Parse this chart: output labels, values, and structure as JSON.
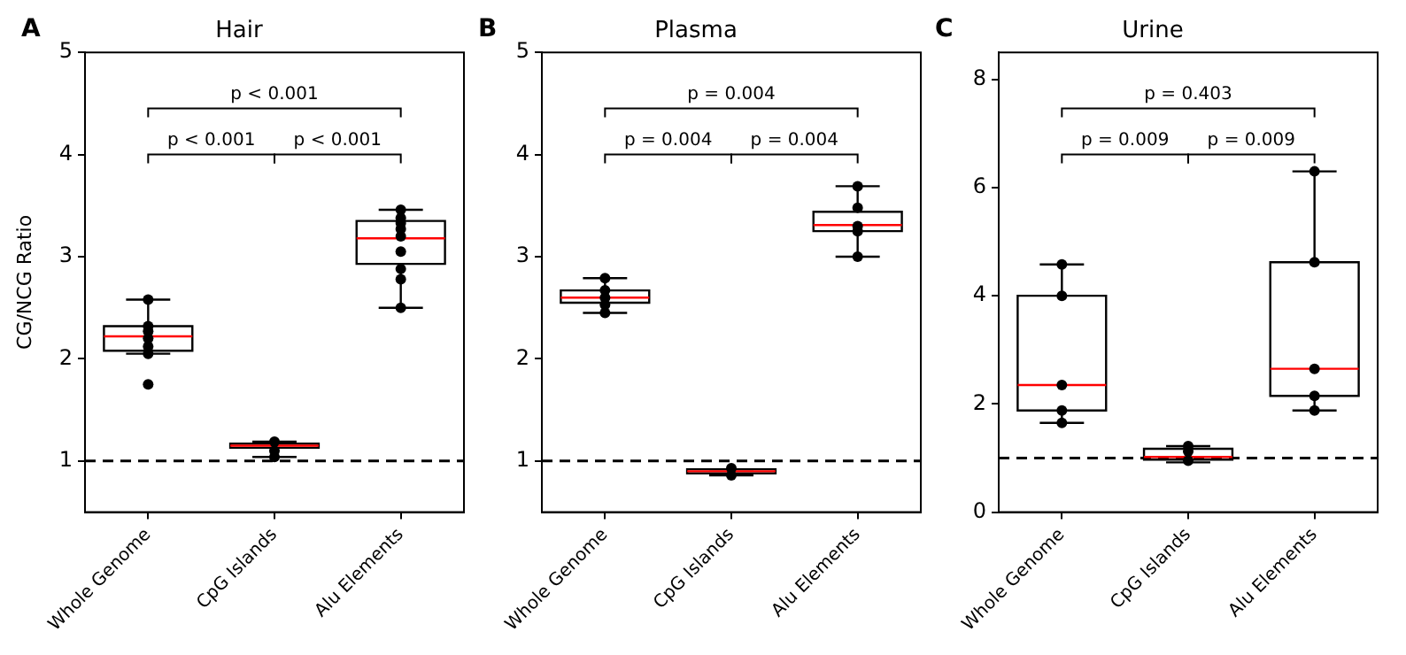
{
  "chart_data": [
    {
      "type": "box",
      "title": "Hair",
      "ylabel": "CG/NCG Ratio",
      "categories": [
        "Whole Genome",
        "CpG Islands",
        "Alu Elements"
      ],
      "ylim": [
        0.5,
        5
      ],
      "yticks": [
        1,
        2,
        3,
        4,
        5
      ],
      "grid": false,
      "legend": false,
      "ref_lines": [
        {
          "axis": "y",
          "value": 1,
          "color": "#000000",
          "line_style": "dashed"
        }
      ],
      "annotations": [
        "A",
        "p < 0.001",
        "p < 0.001",
        "p < 0.001"
      ],
      "series": [
        {
          "type": "box",
          "color": "#000000",
          "boxes": [
            {
              "low": 2.05,
              "q1": 2.08,
              "median": 2.22,
              "q3": 2.32,
              "high": 2.58
            },
            {
              "low": 1.04,
              "q1": 1.13,
              "median": 1.15,
              "q3": 1.17,
              "high": 1.19
            },
            {
              "low": 2.5,
              "q1": 2.93,
              "median": 3.18,
              "q3": 3.35,
              "high": 3.46
            }
          ]
        },
        {
          "type": "scatter",
          "color": "#000000",
          "marker": "circle",
          "x": [
            "Whole Genome",
            "Whole Genome",
            "Whole Genome",
            "Whole Genome",
            "Whole Genome",
            "Whole Genome",
            "Whole Genome",
            "CpG Islands",
            "CpG Islands",
            "CpG Islands",
            "Alu Elements",
            "Alu Elements",
            "Alu Elements",
            "Alu Elements",
            "Alu Elements",
            "Alu Elements",
            "Alu Elements",
            "Alu Elements",
            "Alu Elements"
          ],
          "values": [
            2.58,
            2.32,
            2.27,
            2.2,
            2.12,
            2.05,
            1.75,
            1.19,
            1.1,
            1.04,
            3.46,
            3.38,
            3.33,
            3.27,
            3.2,
            3.05,
            2.88,
            2.78,
            2.5
          ]
        }
      ]
    },
    {
      "type": "box",
      "title": "Plasma",
      "categories": [
        "Whole Genome",
        "CpG Islands",
        "Alu Elements"
      ],
      "ylim": [
        0.5,
        5
      ],
      "yticks": [
        1,
        2,
        3,
        4,
        5
      ],
      "grid": false,
      "legend": false,
      "ref_lines": [
        {
          "axis": "y",
          "value": 1,
          "color": "#000000",
          "line_style": "dashed"
        }
      ],
      "annotations": [
        "B",
        "p = 0.004",
        "p = 0.004",
        "p = 0.004"
      ],
      "series": [
        {
          "type": "box",
          "color": "#000000",
          "boxes": [
            {
              "low": 2.45,
              "q1": 2.55,
              "median": 2.6,
              "q3": 2.67,
              "high": 2.79
            },
            {
              "low": 0.86,
              "q1": 0.88,
              "median": 0.9,
              "q3": 0.92,
              "high": 0.92
            },
            {
              "low": 3.0,
              "q1": 3.25,
              "median": 3.31,
              "q3": 3.44,
              "high": 3.69
            }
          ]
        },
        {
          "type": "scatter",
          "color": "#000000",
          "marker": "circle",
          "x": [
            "Whole Genome",
            "Whole Genome",
            "Whole Genome",
            "Whole Genome",
            "Whole Genome",
            "CpG Islands",
            "CpG Islands",
            "Alu Elements",
            "Alu Elements",
            "Alu Elements",
            "Alu Elements",
            "Alu Elements"
          ],
          "values": [
            2.79,
            2.67,
            2.6,
            2.53,
            2.45,
            0.93,
            0.86,
            3.69,
            3.48,
            3.3,
            3.25,
            3.0
          ]
        }
      ]
    },
    {
      "type": "box",
      "title": "Urine",
      "categories": [
        "Whole Genome",
        "CpG Islands",
        "Alu Elements"
      ],
      "ylim": [
        0,
        8.5
      ],
      "yticks": [
        0,
        2,
        4,
        6,
        8
      ],
      "grid": false,
      "legend": false,
      "ref_lines": [
        {
          "axis": "y",
          "value": 1,
          "color": "#000000",
          "line_style": "dashed"
        }
      ],
      "annotations": [
        "C",
        "p = 0.403",
        "p = 0.009",
        "p = 0.009"
      ],
      "series": [
        {
          "type": "box",
          "color": "#000000",
          "boxes": [
            {
              "low": 1.65,
              "q1": 1.88,
              "median": 2.35,
              "q3": 4.0,
              "high": 4.58
            },
            {
              "low": 0.92,
              "q1": 0.97,
              "median": 1.02,
              "q3": 1.17,
              "high": 1.22
            },
            {
              "low": 1.88,
              "q1": 2.15,
              "median": 2.65,
              "q3": 4.62,
              "high": 6.3
            }
          ]
        },
        {
          "type": "scatter",
          "color": "#000000",
          "marker": "circle",
          "x": [
            "Whole Genome",
            "Whole Genome",
            "Whole Genome",
            "Whole Genome",
            "Whole Genome",
            "CpG Islands",
            "CpG Islands",
            "CpG Islands",
            "Alu Elements",
            "Alu Elements",
            "Alu Elements",
            "Alu Elements",
            "Alu Elements"
          ],
          "values": [
            4.58,
            4.0,
            2.35,
            1.88,
            1.65,
            1.22,
            1.12,
            0.95,
            6.3,
            4.62,
            2.65,
            2.15,
            1.88
          ]
        }
      ]
    }
  ]
}
